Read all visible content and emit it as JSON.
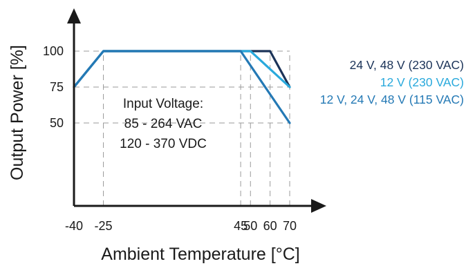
{
  "chart_data": {
    "type": "line",
    "xlabel": "Ambient Temperature [°C]",
    "ylabel": "Output Power [%]",
    "x_ticks": [
      "-40",
      "-25",
      "45",
      "50",
      "60",
      "70"
    ],
    "y_ticks": [
      "100",
      "75",
      "50"
    ],
    "grid": true,
    "legend_position": "right",
    "annotation": [
      "Input Voltage:",
      "85 - 264 VAC",
      "120 - 370 VDC"
    ],
    "series": [
      {
        "name": "24 V, 48 V (230 VAC)",
        "color": "#1b3358",
        "x": [
          -40,
          -25,
          60,
          70
        ],
        "y": [
          75,
          100,
          100,
          75
        ]
      },
      {
        "name": "12 V (230 VAC)",
        "color": "#29a9dc",
        "x": [
          -40,
          -25,
          50,
          70
        ],
        "y": [
          75,
          100,
          100,
          75
        ]
      },
      {
        "name": "12 V, 24 V, 48 V (115 VAC)",
        "color": "#2479b5",
        "x": [
          -40,
          -25,
          45,
          70
        ],
        "y": [
          75,
          100,
          100,
          50
        ]
      }
    ]
  }
}
